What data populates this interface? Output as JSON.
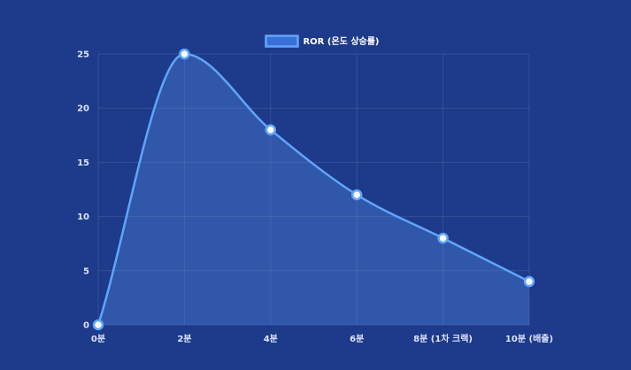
{
  "chart_data": {
    "type": "line",
    "categories": [
      "0분",
      "2분",
      "4분",
      "6분",
      "8분 (1차 크랙)",
      "10분 (배출)"
    ],
    "series": [
      {
        "name": "ROR (온도 상승률)",
        "values": [
          0,
          25,
          18,
          12,
          8,
          4
        ]
      }
    ],
    "yticks": [
      0,
      5,
      10,
      15,
      20,
      25
    ],
    "ylim": [
      0,
      25
    ],
    "grid": true,
    "fill": true,
    "smooth": true,
    "legend_position": "top-center",
    "colors": {
      "background": "#1e3a8a",
      "line": "#60a5fa",
      "fill": "rgba(96,165,250,0.28)",
      "point_fill": "#ffffff",
      "grid": "rgba(255,255,255,0.10)",
      "legend_box": "#3b6fd8"
    }
  }
}
